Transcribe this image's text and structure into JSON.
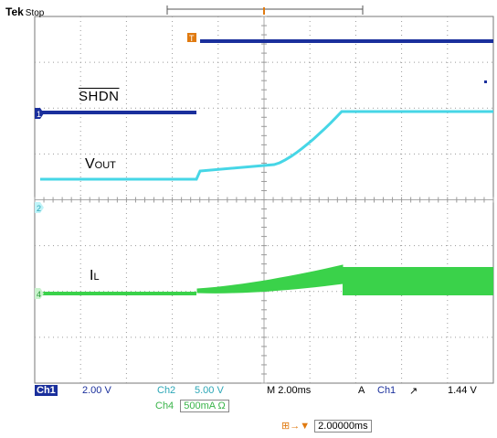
{
  "header": {
    "brand": "Tek",
    "state": "Stop"
  },
  "labels": {
    "shdn": "SHDN",
    "vout_main": "V",
    "vout_sub": "OUT",
    "il_main": "I",
    "il_sub": "L"
  },
  "markers": {
    "ch1": "1",
    "ch2": "2",
    "ch4": "4",
    "trigger": "T"
  },
  "status": {
    "ch1_tag": "Ch1",
    "ch1_scale": "2.00 V",
    "ch2_tag": "Ch2",
    "ch2_scale": "5.00 V",
    "timebase": "M 2.00ms",
    "trig_mode": "A",
    "trig_src": "Ch1",
    "trig_slope": "↗",
    "trig_level": "1.44 V"
  },
  "ch4_status": {
    "tag": "Ch4",
    "scale": "500mA Ω"
  },
  "delay": {
    "marker": "⊞→▼",
    "value": "2.00000ms"
  },
  "colors": {
    "background": "#ffffff",
    "grid": "#9a9a9a",
    "ch1": "#1a2f9c",
    "ch2": "#46d6e6",
    "ch4": "#3ad24a",
    "trigger_marker": "#e07a10"
  }
}
